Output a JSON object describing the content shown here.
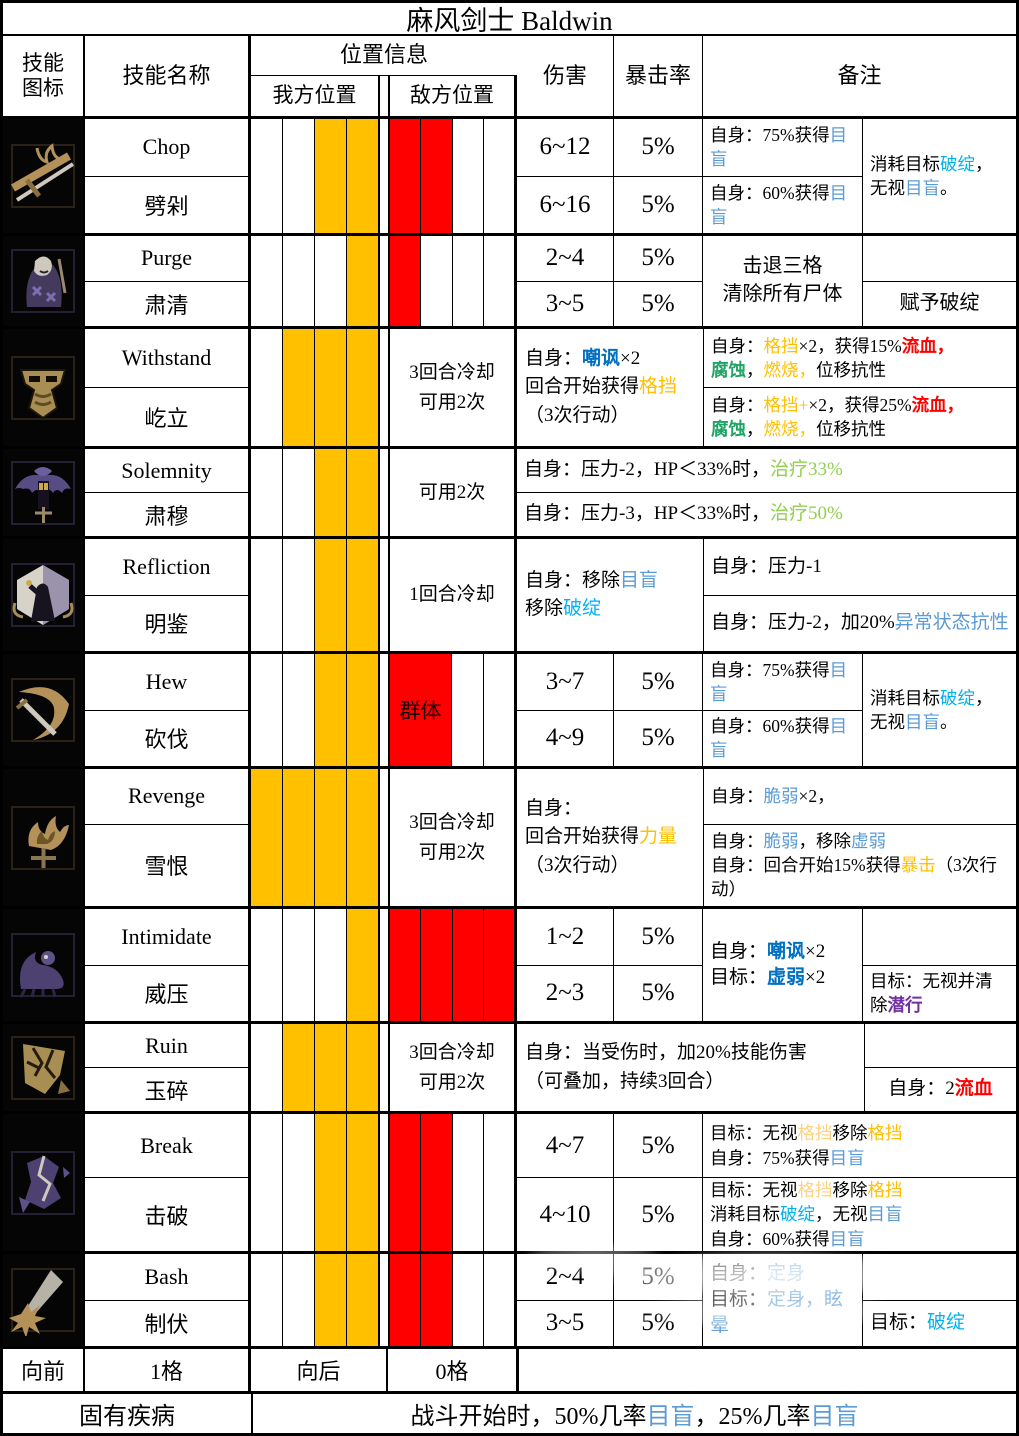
{
  "title": "麻风剑士 Baldwin",
  "header": {
    "skill_icon": "技能\n图标",
    "skill_name": "技能名称",
    "position_info": "位置信息",
    "ally_position": "我方位置",
    "enemy_position": "敌方位置",
    "damage": "伤害",
    "crit": "暴击率",
    "notes": "备注"
  },
  "colors": {
    "orange": "#FFC000",
    "light_orange": "#FFD27F",
    "red": "#FF0000",
    "light_blue": "#5B9BD5",
    "cyan": "#00B0F0",
    "bold_blue": "#0070C0",
    "green": "#21A366",
    "yellow_green": "#92D050",
    "purple": "#7030A0"
  },
  "skills": [
    {
      "name_en": "Chop",
      "name_cn": "劈剁",
      "ally": [
        "w",
        "w",
        "o",
        "o"
      ],
      "enemy": [
        "r",
        "r",
        "w",
        "w"
      ],
      "rows": [
        {
          "dmg": "6~12",
          "crit": "5%"
        },
        {
          "dmg": "6~16",
          "crit": "5%"
        }
      ],
      "notes_left": [
        [
          [
            {
              "t": "自身：75%获得"
            },
            {
              "t": "目盲",
              "c": "lb"
            }
          ]
        ],
        [
          [
            {
              "t": "自身：60%获得"
            },
            {
              "t": "目盲",
              "c": "lb"
            }
          ]
        ]
      ],
      "notes_right": [
        [
          {
            "t": "消耗目标"
          },
          {
            "t": "破绽",
            "c": "cy"
          },
          {
            "t": "，"
          }
        ],
        [
          {
            "t": "无视"
          },
          {
            "t": "目盲",
            "c": "lb"
          },
          {
            "t": "。"
          }
        ]
      ]
    },
    {
      "name_en": "Purge",
      "name_cn": "肃清",
      "ally": [
        "w",
        "w",
        "w",
        "o"
      ],
      "enemy": [
        "r",
        "w",
        "w",
        "w"
      ],
      "rows": [
        {
          "dmg": "2~4",
          "crit": "5%"
        },
        {
          "dmg": "3~5",
          "crit": "5%"
        }
      ],
      "notes_center": [
        [
          {
            "t": "击退三格"
          }
        ],
        [
          {
            "t": "清除所有尸体"
          }
        ]
      ],
      "notes_right_bottom": [
        [
          {
            "t": "赋予破绽"
          }
        ]
      ]
    },
    {
      "name_en": "Withstand",
      "name_cn": "屹立",
      "ally": [
        "w",
        "o",
        "o",
        "o"
      ],
      "cooldown": "3回合冷却\n可用2次",
      "mid": [
        [
          {
            "t": "自身："
          },
          {
            "t": "嘲讽",
            "c": "bb"
          },
          {
            "t": "×2"
          }
        ],
        [
          {
            "t": "回合开始获得"
          },
          {
            "t": "格挡",
            "c": "or"
          }
        ],
        [
          {
            "t": "（3次行动）"
          }
        ]
      ],
      "notes_full": [
        [
          [
            {
              "t": "自身："
            },
            {
              "t": "格挡",
              "c": "or"
            },
            {
              "t": "×2，获得15%"
            },
            {
              "t": "流血，",
              "c": "rd"
            }
          ],
          [
            {
              "t": "腐蚀",
              "c": "gn"
            },
            {
              "t": "，"
            },
            {
              "t": "燃烧，",
              "c": "or"
            },
            {
              "t": "位移抗性"
            }
          ]
        ],
        [
          [
            {
              "t": "自身："
            },
            {
              "t": "格挡+",
              "c": "or"
            },
            {
              "t": "×2，获得25%"
            },
            {
              "t": "流血，",
              "c": "rd"
            }
          ],
          [
            {
              "t": "腐蚀",
              "c": "gn"
            },
            {
              "t": "，"
            },
            {
              "t": "燃烧，",
              "c": "or"
            },
            {
              "t": "位移抗性"
            }
          ]
        ]
      ]
    },
    {
      "name_en": "Solemnity",
      "name_cn": "肃穆",
      "ally": [
        "w",
        "w",
        "o",
        "o"
      ],
      "cooldown": "可用2次",
      "rows_full": [
        [
          [
            {
              "t": "自身：压力-2，HP＜33%时，"
            },
            {
              "t": "治疗33%",
              "c": "yg"
            }
          ]
        ],
        [
          [
            {
              "t": "自身：压力-3，HP＜33%时，"
            },
            {
              "t": "治疗50%",
              "c": "yg"
            }
          ]
        ]
      ]
    },
    {
      "name_en": "Refliction",
      "name_cn": "明鉴",
      "ally": [
        "w",
        "w",
        "o",
        "o"
      ],
      "cooldown": "1回合冷却",
      "mid": [
        [
          {
            "t": "自身：移除"
          },
          {
            "t": "目盲",
            "c": "lb"
          }
        ],
        [
          {
            "t": "移除"
          },
          {
            "t": "破绽",
            "c": "cy"
          }
        ]
      ],
      "notes_full": [
        [
          [
            {
              "t": "自身：压力-1"
            }
          ]
        ],
        [
          [
            {
              "t": "自身：压力-2，加20%"
            },
            {
              "t": "异常状态抗性",
              "c": "lb"
            }
          ]
        ]
      ]
    },
    {
      "name_en": "Hew",
      "name_cn": "砍伐",
      "ally": [
        "w",
        "w",
        "o",
        "o"
      ],
      "enemy_label": "群体",
      "rows": [
        {
          "dmg": "3~7",
          "crit": "5%"
        },
        {
          "dmg": "4~9",
          "crit": "5%"
        }
      ],
      "notes_left": [
        [
          [
            {
              "t": "自身：75%获得"
            },
            {
              "t": "目盲",
              "c": "lb"
            }
          ]
        ],
        [
          [
            {
              "t": "自身：60%获得"
            },
            {
              "t": "目盲",
              "c": "lb"
            }
          ]
        ]
      ],
      "notes_right": [
        [
          {
            "t": "消耗目标"
          },
          {
            "t": "破绽",
            "c": "cy"
          },
          {
            "t": "，"
          }
        ],
        [
          {
            "t": "无视"
          },
          {
            "t": "目盲",
            "c": "lb"
          },
          {
            "t": "。"
          }
        ]
      ]
    },
    {
      "name_en": "Revenge",
      "name_cn": "雪恨",
      "ally": [
        "o",
        "o",
        "o",
        "o"
      ],
      "cooldown": "3回合冷却\n可用2次",
      "mid": [
        [
          {
            "t": "自身："
          }
        ],
        [
          {
            "t": "回合开始获得"
          },
          {
            "t": "力量",
            "c": "or"
          }
        ],
        [
          {
            "t": "（3次行动）"
          }
        ]
      ],
      "note_top": [
        [
          {
            "t": "自身："
          },
          {
            "t": "脆弱",
            "c": "lb"
          },
          {
            "t": "×2，"
          }
        ]
      ],
      "note_bottom": [
        [
          {
            "t": "自身："
          },
          {
            "t": "脆弱",
            "c": "lb"
          },
          {
            "t": "，移除"
          },
          {
            "t": "虚弱",
            "c": "lb"
          }
        ],
        [
          {
            "t": "自身：回合开始15%获得"
          },
          {
            "t": "暴击",
            "c": "or"
          },
          {
            "t": "（3次行动）"
          }
        ]
      ]
    },
    {
      "name_en": "Intimidate",
      "name_cn": "威压",
      "ally": [
        "w",
        "w",
        "w",
        "o"
      ],
      "enemy": [
        "r",
        "r",
        "r",
        "r"
      ],
      "rows": [
        {
          "dmg": "1~2",
          "crit": "5%"
        },
        {
          "dmg": "2~3",
          "crit": "5%"
        }
      ],
      "notes_main": [
        [
          {
            "t": "自身："
          },
          {
            "t": "嘲讽",
            "c": "bb"
          },
          {
            "t": "×2"
          }
        ],
        [
          {
            "t": "目标："
          },
          {
            "t": "虚弱",
            "c": "bb"
          },
          {
            "t": "×2"
          }
        ]
      ],
      "notes_right_bottom": [
        [
          {
            "t": "目标：无视并清除"
          },
          {
            "t": "潜行",
            "c": "pu"
          }
        ]
      ]
    },
    {
      "name_en": "Ruin",
      "name_cn": "玉碎",
      "ally": [
        "w",
        "o",
        "o",
        "o"
      ],
      "cooldown": "3回合冷却\n可用2次",
      "mid": [
        [
          {
            "t": "自身：当受伤时，加20%技能伤害"
          }
        ],
        [
          {
            "t": "（可叠加，持续3回合）"
          }
        ]
      ],
      "notes_right_bottom": [
        [
          {
            "t": "自身：2"
          },
          {
            "t": "流血",
            "c": "rd"
          }
        ]
      ]
    },
    {
      "name_en": "Break",
      "name_cn": "击破",
      "ally": [
        "w",
        "w",
        "o",
        "o"
      ],
      "enemy": [
        "r",
        "r",
        "w",
        "w"
      ],
      "rows": [
        {
          "dmg": "4~7",
          "crit": "5%"
        },
        {
          "dmg": "4~10",
          "crit": "5%"
        }
      ],
      "notes_full": [
        [
          [
            {
              "t": "目标：无视"
            },
            {
              "t": "格挡",
              "c": "lo"
            },
            {
              "t": "移除"
            },
            {
              "t": "格挡",
              "c": "or"
            }
          ],
          [
            {
              "t": "自身：75%获得"
            },
            {
              "t": "目盲",
              "c": "lb"
            }
          ]
        ],
        [
          [
            {
              "t": "目标：无视"
            },
            {
              "t": "格挡",
              "c": "lo"
            },
            {
              "t": "移除"
            },
            {
              "t": "格挡",
              "c": "or"
            }
          ],
          [
            {
              "t": "消耗目标"
            },
            {
              "t": "破绽",
              "c": "cy"
            },
            {
              "t": "，无视"
            },
            {
              "t": "目盲",
              "c": "lb"
            }
          ],
          [
            {
              "t": "自身：60%获得"
            },
            {
              "t": "目盲",
              "c": "lb"
            }
          ]
        ]
      ]
    },
    {
      "name_en": "Bash",
      "name_cn": "制伏",
      "ally": [
        "w",
        "w",
        "o",
        "o"
      ],
      "enemy": [
        "r",
        "r",
        "w",
        "w"
      ],
      "rows": [
        {
          "dmg": "2~4",
          "crit": "5%"
        },
        {
          "dmg": "3~5",
          "crit": "5%"
        }
      ],
      "notes_main": [
        [
          {
            "t": "自身："
          },
          {
            "t": "定身",
            "c": "lb"
          }
        ],
        [
          {
            "t": "目标："
          },
          {
            "t": "定身，眩晕",
            "c": "lb"
          }
        ]
      ],
      "notes_right_bottom": [
        [
          {
            "t": "目标："
          },
          {
            "t": "破绽",
            "c": "cy"
          }
        ]
      ]
    }
  ],
  "footer": {
    "forward_label": "向前",
    "forward_value": "1格",
    "backward_label": "向后",
    "backward_value": "0格",
    "disease_label": "固有疾病",
    "disease_text": [
      [
        {
          "t": "战斗开始时，50%几率"
        },
        {
          "t": "目盲",
          "c": "lb"
        },
        {
          "t": "，25%几率"
        },
        {
          "t": "目盲",
          "c": "lb"
        }
      ]
    ]
  }
}
